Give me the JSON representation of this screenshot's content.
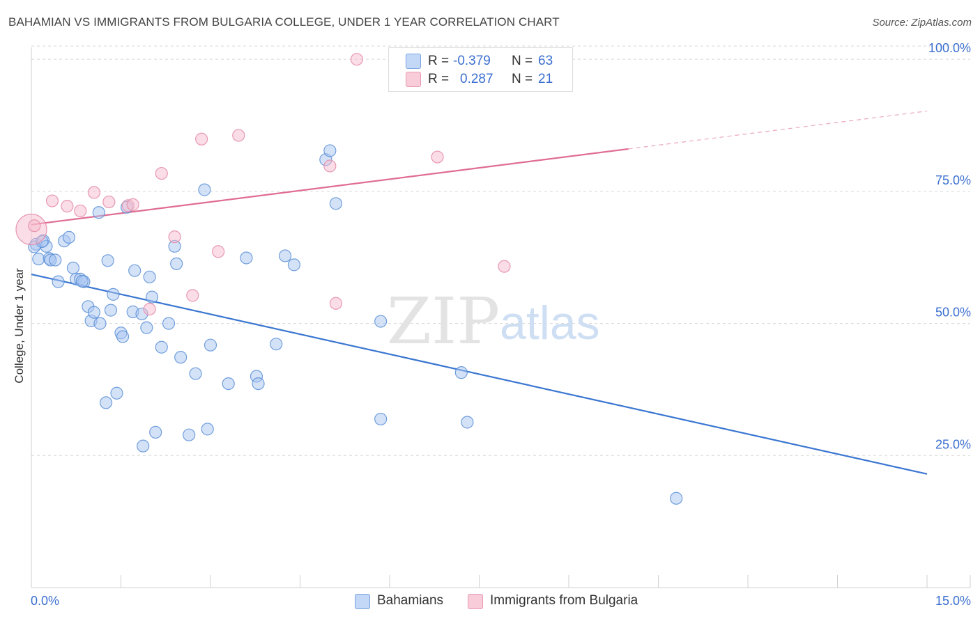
{
  "title": "BAHAMIAN VS IMMIGRANTS FROM BULGARIA COLLEGE, UNDER 1 YEAR CORRELATION CHART",
  "source": "Source: ZipAtlas.com",
  "watermark": {
    "zip": "ZIP",
    "atlas": "atlas"
  },
  "legend_top": [
    {
      "r_label": "R =",
      "r_value": "-0.379",
      "n_label": "N =",
      "n_value": "63"
    },
    {
      "r_label": "R =",
      "r_value": "0.287",
      "n_label": "N =",
      "n_value": "21"
    }
  ],
  "legend_bottom": [
    {
      "label": "Bahamians"
    },
    {
      "label": "Immigrants from Bulgaria"
    }
  ],
  "colors": {
    "blue_fill": "#a9c6f2",
    "blue_stroke": "#5b8fd6",
    "blue_line": "#3a76d1",
    "pink_fill": "#f6bccd",
    "pink_stroke": "#e58aa6",
    "pink_line": "#e06c94",
    "axis_text": "#3b6fd0",
    "grid": "#d8d8d8"
  },
  "chart_data": {
    "type": "scatter",
    "title": "BAHAMIAN VS IMMIGRANTS FROM BULGARIA COLLEGE, UNDER 1 YEAR CORRELATION CHART",
    "xlabel": "",
    "ylabel": "College, Under 1 year",
    "xlim": [
      0,
      15
    ],
    "ylim": [
      0,
      102
    ],
    "x_tick_labels": [
      "0.0%",
      "15.0%"
    ],
    "y_ticks": [
      25,
      50,
      75,
      100
    ],
    "y_tick_labels": [
      "25.0%",
      "50.0%",
      "75.0%",
      "100.0%"
    ],
    "legend_position": "bottom",
    "series": [
      {
        "name": "Bahamians",
        "r": -0.379,
        "n": 63,
        "trend": {
          "x": [
            0,
            15
          ],
          "y": [
            59.3,
            21.5
          ],
          "solid_to": 15
        },
        "points": [
          [
            0.08,
            65.0
          ],
          [
            0.12,
            62.2
          ],
          [
            0.2,
            65.7
          ],
          [
            0.25,
            64.6
          ],
          [
            0.3,
            62.3
          ],
          [
            0.32,
            62.0
          ],
          [
            0.4,
            62.0
          ],
          [
            0.45,
            57.9
          ],
          [
            0.55,
            65.6
          ],
          [
            0.63,
            66.3
          ],
          [
            0.7,
            60.5
          ],
          [
            0.75,
            58.4
          ],
          [
            0.82,
            58.4
          ],
          [
            0.88,
            57.9
          ],
          [
            0.95,
            53.2
          ],
          [
            1.0,
            50.5
          ],
          [
            1.05,
            52.1
          ],
          [
            1.15,
            50.0
          ],
          [
            1.13,
            71.0
          ],
          [
            1.28,
            61.9
          ],
          [
            1.33,
            52.5
          ],
          [
            1.37,
            55.5
          ],
          [
            1.5,
            48.2
          ],
          [
            1.53,
            47.5
          ],
          [
            1.6,
            72.0
          ],
          [
            1.7,
            52.2
          ],
          [
            1.73,
            60.0
          ],
          [
            1.85,
            51.8
          ],
          [
            1.93,
            49.2
          ],
          [
            1.98,
            58.8
          ],
          [
            2.02,
            55.0
          ],
          [
            2.18,
            45.5
          ],
          [
            2.3,
            50.0
          ],
          [
            2.4,
            64.6
          ],
          [
            2.43,
            61.3
          ],
          [
            2.5,
            43.6
          ],
          [
            2.75,
            40.5
          ],
          [
            2.9,
            75.3
          ],
          [
            3.0,
            45.9
          ],
          [
            3.3,
            38.6
          ],
          [
            3.6,
            62.4
          ],
          [
            3.77,
            40.0
          ],
          [
            3.8,
            38.6
          ],
          [
            4.1,
            46.1
          ],
          [
            4.25,
            62.8
          ],
          [
            4.4,
            61.1
          ],
          [
            4.93,
            81.0
          ],
          [
            5.0,
            82.7
          ],
          [
            5.1,
            72.7
          ],
          [
            5.85,
            50.4
          ],
          [
            7.2,
            40.7
          ],
          [
            1.25,
            35.0
          ],
          [
            1.43,
            36.8
          ],
          [
            1.87,
            26.8
          ],
          [
            2.08,
            29.4
          ],
          [
            2.64,
            28.9
          ],
          [
            2.95,
            30.0
          ],
          [
            5.85,
            31.9
          ],
          [
            7.3,
            31.3
          ],
          [
            10.8,
            16.9
          ],
          [
            0.05,
            64.5
          ],
          [
            0.18,
            65.5
          ],
          [
            0.85,
            58.0
          ]
        ]
      },
      {
        "name": "Immigrants from Bulgaria",
        "r": 0.287,
        "n": 21,
        "trend": {
          "x": [
            0,
            15
          ],
          "y": [
            68.7,
            90.2
          ],
          "solid_to": 10.0
        },
        "points": [
          [
            0.0,
            67.8
          ],
          [
            0.35,
            73.2
          ],
          [
            0.6,
            72.2
          ],
          [
            0.82,
            71.3
          ],
          [
            1.05,
            74.8
          ],
          [
            1.3,
            73.0
          ],
          [
            1.62,
            72.3
          ],
          [
            1.7,
            72.5
          ],
          [
            1.98,
            52.7
          ],
          [
            2.18,
            78.4
          ],
          [
            2.4,
            66.4
          ],
          [
            2.7,
            55.3
          ],
          [
            2.85,
            84.9
          ],
          [
            3.13,
            63.6
          ],
          [
            3.47,
            85.6
          ],
          [
            5.0,
            79.8
          ],
          [
            5.1,
            53.8
          ],
          [
            5.45,
            100.0
          ],
          [
            6.8,
            81.5
          ],
          [
            7.92,
            60.8
          ],
          [
            0.05,
            68.5
          ]
        ]
      }
    ]
  }
}
